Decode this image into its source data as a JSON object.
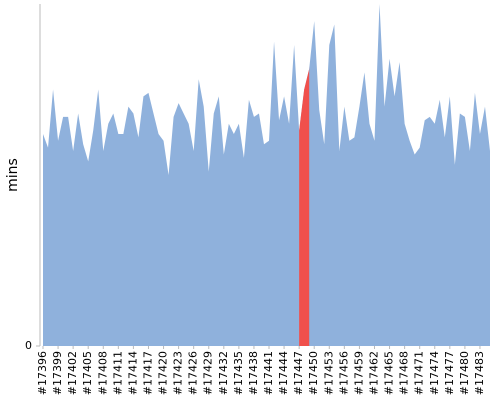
{
  "chart_data": {
    "type": "area",
    "y_label": "mins",
    "x": [
      17396,
      17397,
      17398,
      17399,
      17400,
      17401,
      17402,
      17403,
      17404,
      17405,
      17406,
      17407,
      17408,
      17409,
      17410,
      17411,
      17412,
      17413,
      17414,
      17415,
      17416,
      17417,
      17418,
      17419,
      17420,
      17421,
      17422,
      17423,
      17424,
      17425,
      17426,
      17427,
      17428,
      17429,
      17430,
      17431,
      17432,
      17433,
      17434,
      17435,
      17436,
      17437,
      17438,
      17439,
      17440,
      17441,
      17442,
      17443,
      17444,
      17445,
      17446,
      17447,
      17448,
      17449,
      17450,
      17451,
      17452,
      17453,
      17454,
      17455,
      17456,
      17457,
      17458,
      17459,
      17460,
      17461,
      17462,
      17463,
      17464,
      17465,
      17466,
      17467,
      17468,
      17469,
      17470,
      17471,
      17472,
      17473,
      17474,
      17475,
      17476,
      17477,
      17478,
      17479,
      17480,
      17481,
      17482,
      17483,
      17484,
      17485
    ],
    "values": [
      62,
      58,
      75,
      60,
      67,
      67,
      57,
      68,
      59,
      54,
      63,
      75,
      57,
      65,
      68,
      62,
      62,
      70,
      68,
      61,
      73,
      74,
      68,
      62,
      60,
      50,
      67,
      71,
      68,
      65,
      57,
      78,
      70,
      51,
      68,
      73,
      56,
      65,
      62,
      65,
      55,
      72,
      67,
      68,
      59,
      60,
      89,
      66,
      73,
      65,
      88,
      63,
      75,
      81,
      95,
      69,
      59,
      88,
      94,
      57,
      70,
      60,
      61,
      70,
      80,
      65,
      60,
      100,
      70,
      84,
      73,
      83,
      65,
      60,
      56,
      58,
      66,
      67,
      65,
      72,
      61,
      73,
      53,
      68,
      67,
      57,
      74,
      62,
      70,
      57
    ],
    "color": "#8fb1dc",
    "highlight": {
      "x": [
        17447,
        17449
      ],
      "color": "#f0504c"
    },
    "xlim": [
      17396,
      17485
    ],
    "ylim": [
      0,
      100
    ],
    "xticks": [
      {
        "value": 17396,
        "label": "#17396"
      },
      {
        "value": 17399,
        "label": "#17399"
      },
      {
        "value": 17402,
        "label": "#17402"
      },
      {
        "value": 17405,
        "label": "#17405"
      },
      {
        "value": 17408,
        "label": "#17408"
      },
      {
        "value": 17411,
        "label": "#17411"
      },
      {
        "value": 17414,
        "label": "#17414"
      },
      {
        "value": 17417,
        "label": "#17417"
      },
      {
        "value": 17420,
        "label": "#17420"
      },
      {
        "value": 17423,
        "label": "#17423"
      },
      {
        "value": 17426,
        "label": "#17426"
      },
      {
        "value": 17429,
        "label": "#17429"
      },
      {
        "value": 17432,
        "label": "#17432"
      },
      {
        "value": 17435,
        "label": "#17435"
      },
      {
        "value": 17438,
        "label": "#17438"
      },
      {
        "value": 17441,
        "label": "#17441"
      },
      {
        "value": 17444,
        "label": "#17444"
      },
      {
        "value": 17447,
        "label": "#17447"
      },
      {
        "value": 17450,
        "label": "#17450"
      },
      {
        "value": 17453,
        "label": "#17453"
      },
      {
        "value": 17456,
        "label": "#17456"
      },
      {
        "value": 17459,
        "label": "#17459"
      },
      {
        "value": 17462,
        "label": "#17462"
      },
      {
        "value": 17465,
        "label": "#17465"
      },
      {
        "value": 17468,
        "label": "#17468"
      },
      {
        "value": 17471,
        "label": "#17471"
      },
      {
        "value": 17474,
        "label": "#17474"
      },
      {
        "value": 17477,
        "label": "#17477"
      },
      {
        "value": 17480,
        "label": "#17480"
      },
      {
        "value": 17483,
        "label": "#17483"
      }
    ],
    "yticks": [
      0
    ]
  }
}
